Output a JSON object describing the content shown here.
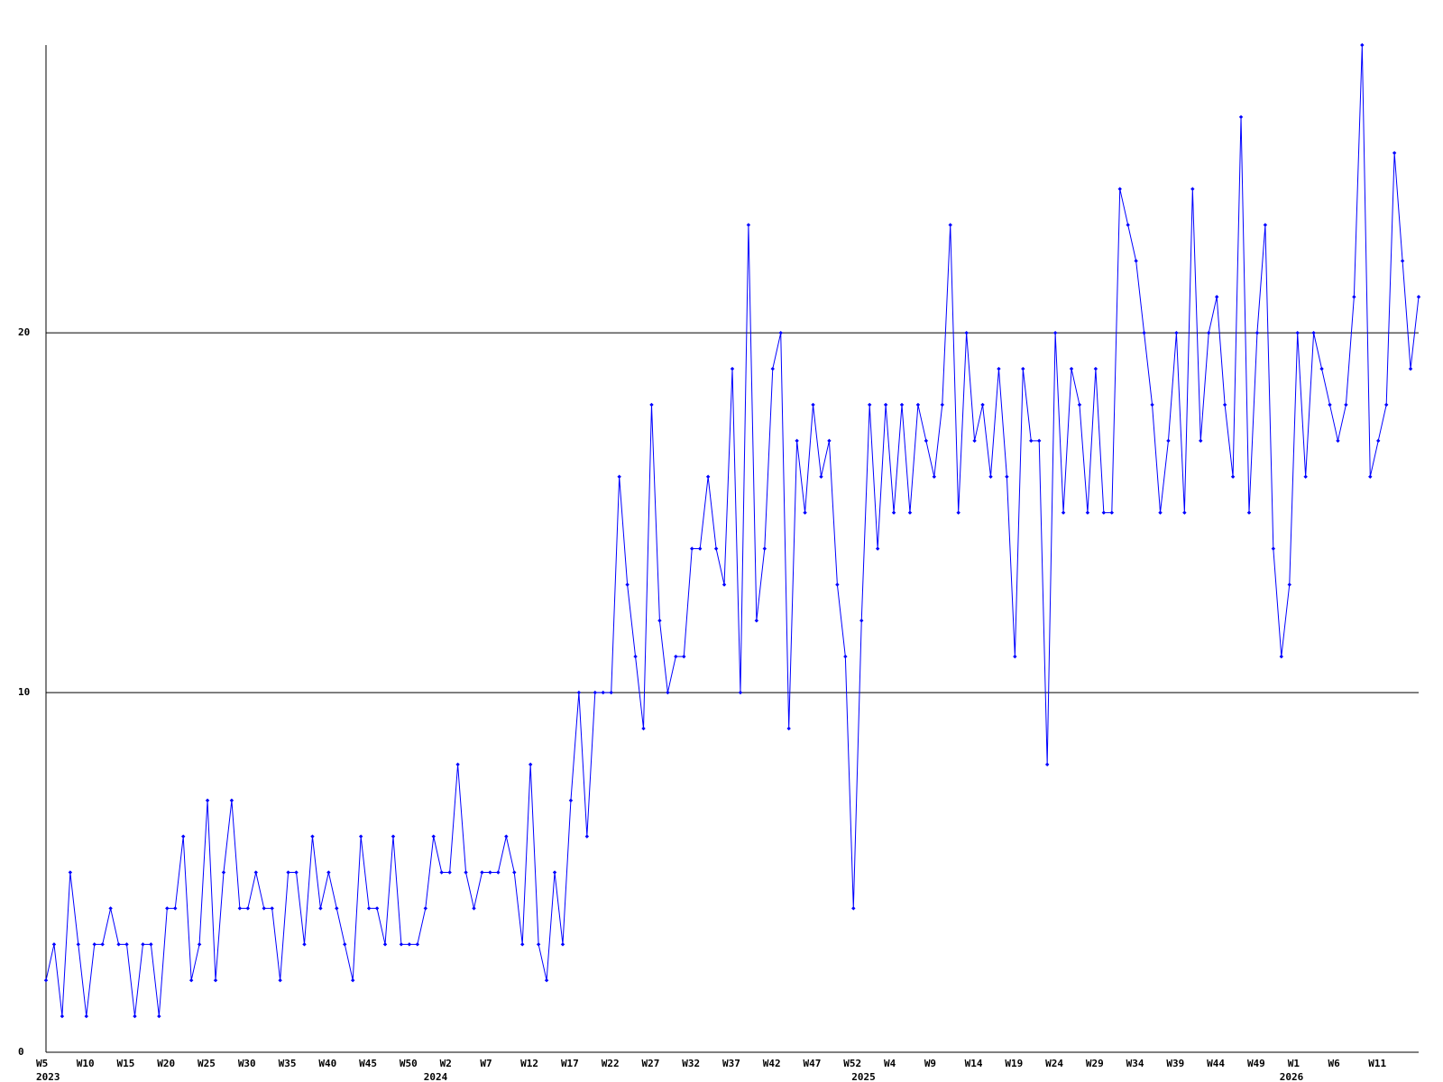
{
  "chart_data": {
    "type": "line",
    "categories": [
      "W5",
      null,
      null,
      null,
      null,
      "W10",
      null,
      null,
      null,
      null,
      "W15",
      null,
      null,
      null,
      null,
      "W20",
      null,
      null,
      null,
      null,
      "W25",
      null,
      null,
      null,
      null,
      "W30",
      null,
      null,
      null,
      null,
      "W35",
      null,
      null,
      null,
      null,
      "W40",
      null,
      null,
      null,
      null,
      "W45",
      null,
      null,
      null,
      null,
      "W50",
      null,
      null,
      null,
      null,
      "W2",
      null,
      null,
      null,
      null,
      "W7",
      null,
      null,
      null,
      null,
      "W12",
      null,
      null,
      null,
      null,
      "W17",
      null,
      null,
      null,
      null,
      "W22",
      null,
      null,
      null,
      null,
      "W27",
      null,
      null,
      null,
      null,
      "W32",
      null,
      null,
      null,
      null,
      "W37",
      null,
      null,
      null,
      null,
      "W42",
      null,
      null,
      null,
      null,
      "W47",
      null,
      null,
      null,
      null,
      "W52",
      null,
      null,
      null,
      null,
      "W4",
      null,
      null,
      null,
      null,
      "W9",
      null,
      null,
      null,
      null,
      "W14",
      null,
      null,
      null,
      null,
      "W19",
      null,
      null,
      null,
      null,
      "W24",
      null,
      null,
      null,
      null,
      "W29",
      null,
      null,
      null,
      null,
      "W34",
      null,
      null,
      null,
      null,
      "W39",
      null,
      null,
      null,
      null,
      "W44",
      null,
      null,
      null,
      null,
      "W49",
      null,
      null,
      null,
      null,
      "W1",
      null,
      null,
      null,
      null,
      "W6",
      null,
      null,
      null,
      null,
      "W11",
      null,
      null,
      null,
      null,
      null
    ],
    "years": [
      "2023",
      null,
      null,
      null,
      null,
      null,
      null,
      null,
      null,
      null,
      null,
      null,
      null,
      null,
      null,
      null,
      null,
      null,
      null,
      null,
      null,
      null,
      null,
      null,
      null,
      null,
      null,
      null,
      null,
      null,
      null,
      null,
      null,
      null,
      null,
      null,
      null,
      null,
      null,
      null,
      null,
      null,
      null,
      null,
      null,
      null,
      null,
      null,
      "2024",
      null,
      null,
      null,
      null,
      null,
      null,
      null,
      null,
      null,
      null,
      null,
      null,
      null,
      null,
      null,
      null,
      null,
      null,
      null,
      null,
      null,
      null,
      null,
      null,
      null,
      null,
      null,
      null,
      null,
      null,
      null,
      null,
      null,
      null,
      null,
      null,
      null,
      null,
      null,
      null,
      null,
      null,
      null,
      null,
      null,
      null,
      null,
      null,
      null,
      null,
      null,
      null,
      "2025",
      null,
      null,
      null,
      null,
      null,
      null,
      null,
      null,
      null,
      null,
      null,
      null,
      null,
      null,
      null,
      null,
      null,
      null,
      null,
      null,
      null,
      null,
      null,
      null,
      null,
      null,
      null,
      null,
      null,
      null,
      null,
      null,
      null,
      null,
      null,
      null,
      null,
      null,
      null,
      null,
      null,
      null,
      null,
      null,
      null,
      null,
      null,
      null,
      null,
      null,
      null,
      null,
      "2026",
      null,
      null,
      null,
      null,
      null,
      null,
      null,
      null,
      null,
      null,
      null,
      null,
      null,
      null,
      null,
      null
    ],
    "series": [
      {
        "color": "#0000ff",
        "values": [
          2,
          3,
          1,
          5,
          3,
          1,
          3,
          3,
          4,
          3,
          3,
          1,
          3,
          3,
          1,
          4,
          4,
          6,
          2,
          3,
          7,
          2,
          5,
          7,
          4,
          4,
          5,
          4,
          4,
          2,
          5,
          5,
          3,
          6,
          4,
          5,
          4,
          3,
          2,
          6,
          4,
          4,
          3,
          6,
          3,
          3,
          3,
          4,
          6,
          5,
          5,
          8,
          5,
          4,
          5,
          5,
          5,
          6,
          5,
          3,
          8,
          3,
          2,
          5,
          3,
          7,
          10,
          6,
          10,
          10,
          10,
          16,
          13,
          11,
          9,
          18,
          12,
          10,
          11,
          11,
          14,
          14,
          16,
          14,
          13,
          19,
          10,
          23,
          12,
          14,
          19,
          20,
          9,
          17,
          15,
          18,
          16,
          17,
          13,
          11,
          4,
          12,
          18,
          14,
          18,
          15,
          18,
          15,
          18,
          17,
          16,
          18,
          23,
          15,
          20,
          17,
          18,
          16,
          19,
          16,
          11,
          19,
          17,
          17,
          8,
          20,
          15,
          19,
          18,
          15,
          19,
          15,
          15,
          24,
          23,
          22,
          20,
          18,
          15,
          17,
          20,
          15,
          24,
          17,
          20,
          21,
          18,
          16,
          26,
          15,
          20,
          23,
          14,
          11,
          13,
          20,
          16,
          20,
          19,
          18,
          17,
          18,
          21,
          28,
          16,
          17,
          18,
          25,
          22,
          19,
          21
        ]
      }
    ],
    "ylim": [
      0,
      28
    ],
    "yticks": [
      0,
      10,
      20
    ],
    "grid": true
  }
}
